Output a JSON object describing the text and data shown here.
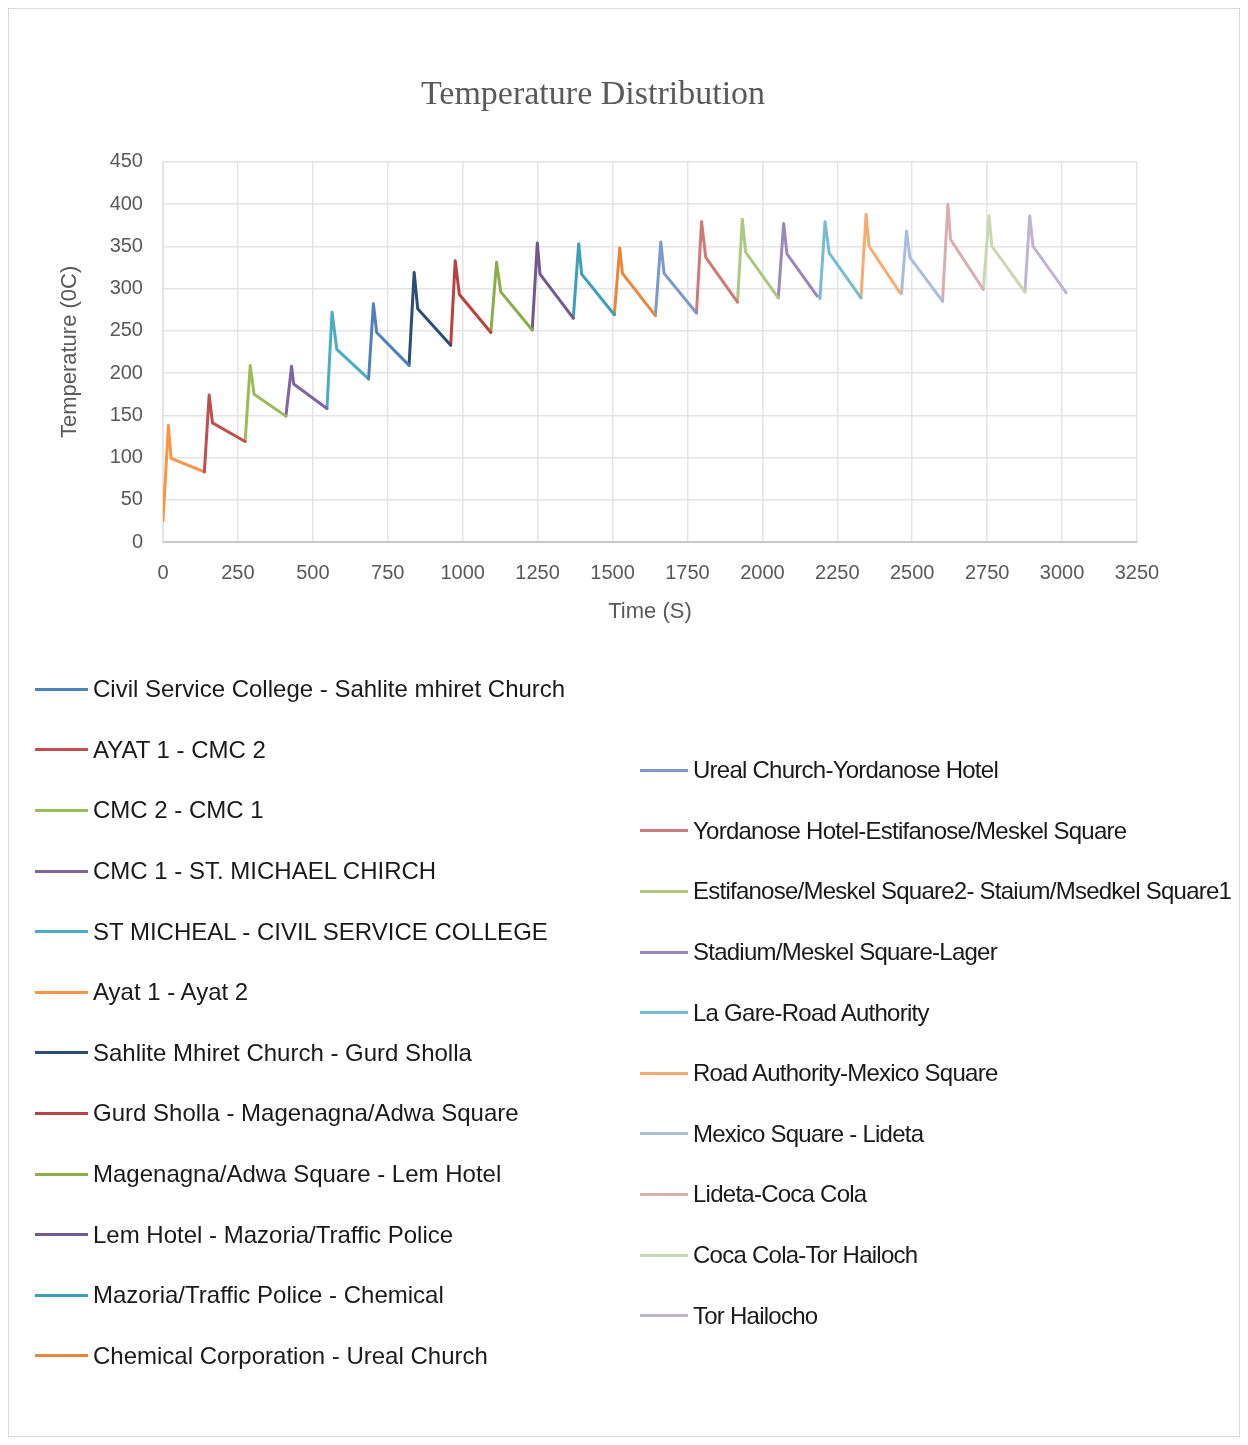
{
  "chart_data": {
    "type": "line",
    "title": "Temperature Distribution",
    "xlabel": "Time (S)",
    "ylabel": "Temperature (0C)",
    "xlim": [
      0,
      3250
    ],
    "xticks": [
      0,
      250,
      500,
      750,
      1000,
      1250,
      1500,
      1750,
      2000,
      2250,
      2500,
      2750,
      3000,
      3250
    ],
    "ylim": [
      0,
      450
    ],
    "yticks": [
      0,
      50,
      100,
      150,
      200,
      250,
      300,
      350,
      400,
      450
    ],
    "grid": true,
    "legend": "bottom",
    "marker": "none",
    "series": [
      {
        "name": "Civil Service College - Sahlite mhiret Church",
        "color": "#4f81bd",
        "x": [
          686,
          702,
          713,
          821
        ],
        "values": [
          193,
          282,
          248,
          209
        ]
      },
      {
        "name": "AYAT 1 - CMC 2",
        "color": "#c0504d",
        "x": [
          138,
          154,
          165,
          274
        ],
        "values": [
          83,
          174,
          141,
          119
        ]
      },
      {
        "name": "CMC 2 - CMC 1",
        "color": "#9bbb59",
        "x": [
          274,
          291,
          304,
          410
        ],
        "values": [
          119,
          209,
          175,
          149
        ]
      },
      {
        "name": "CMC 1 - ST. MICHAEL CHIRCH",
        "color": "#8064a2",
        "x": [
          410,
          429,
          436,
          547
        ],
        "values": [
          149,
          208,
          187,
          158
        ]
      },
      {
        "name": "ST MICHEAL - CIVIL SERVICE COLLEGE",
        "color": "#4bacc6",
        "x": [
          547,
          564,
          580,
          686
        ],
        "values": [
          158,
          272,
          228,
          193
        ]
      },
      {
        "name": "Ayat 1 - Ayat 2",
        "color": "#f79646",
        "x": [
          0,
          18,
          27,
          138
        ],
        "values": [
          25,
          138,
          99,
          83
        ]
      },
      {
        "name": "Sahlite Mhiret Church - Gurd Sholla",
        "color": "#2c4d75",
        "x": [
          821,
          838,
          850,
          960
        ],
        "values": [
          209,
          319,
          276,
          233
        ]
      },
      {
        "name": "Gurd Sholla - Magenagna/Adwa Square",
        "color": "#b84340",
        "x": [
          960,
          975,
          989,
          1094
        ],
        "values": [
          233,
          333,
          293,
          248
        ]
      },
      {
        "name": "Magenagna/Adwa Square - Lem Hotel",
        "color": "#8bad4a",
        "x": [
          1094,
          1113,
          1127,
          1232
        ],
        "values": [
          248,
          331,
          296,
          251
        ]
      },
      {
        "name": "Lem Hotel - Mazoria/Traffic Police",
        "color": "#71588f",
        "x": [
          1232,
          1249,
          1258,
          1369
        ],
        "values": [
          251,
          354,
          317,
          265
        ]
      },
      {
        "name": "Mazoria/Traffic Police - Chemical",
        "color": "#3ca0b8",
        "x": [
          1369,
          1387,
          1397,
          1506
        ],
        "values": [
          265,
          353,
          317,
          269
        ]
      },
      {
        "name": "Chemical Corporation - Ureal Church",
        "color": "#e8873a",
        "x": [
          1506,
          1524,
          1533,
          1643
        ],
        "values": [
          269,
          348,
          318,
          268
        ]
      },
      {
        "name": "Ureal Church-Yordanose Hotel",
        "color": "#7b9acb",
        "x": [
          1643,
          1661,
          1672,
          1780
        ],
        "values": [
          268,
          355,
          318,
          271
        ]
      },
      {
        "name": "Yordanose Hotel-Estifanose/Meskel Square",
        "color": "#cd7b79",
        "x": [
          1780,
          1797,
          1811,
          1917
        ],
        "values": [
          271,
          379,
          337,
          284
        ]
      },
      {
        "name": "Estifanose/Meskel Square2- Staium/Msedkel Square1",
        "color": "#aec884",
        "x": [
          1917,
          1933,
          1944,
          2053
        ],
        "values": [
          284,
          382,
          343,
          289
        ]
      },
      {
        "name": "Stadium/Meskel Square-Lager",
        "color": "#9b87b8",
        "x": [
          2053,
          2071,
          2082,
          2183
        ],
        "values": [
          289,
          377,
          341,
          291
        ]
      },
      {
        "name": "La Gare-Road Authority",
        "color": "#78bcd2",
        "x": [
          2192,
          2209,
          2223,
          2329
        ],
        "values": [
          288,
          379,
          342,
          289
        ]
      },
      {
        "name": "Road Authority-Mexico Square",
        "color": "#f9ab6f",
        "x": [
          2329,
          2346,
          2356,
          2459
        ],
        "values": [
          289,
          388,
          350,
          295
        ]
      },
      {
        "name": "Mexico Square - Lideta",
        "color": "#a9bddc",
        "x": [
          2464,
          2481,
          2492,
          2601
        ],
        "values": [
          294,
          368,
          337,
          285
        ]
      },
      {
        "name": "Lideta-Coca Cola",
        "color": "#d8afae",
        "x": [
          2601,
          2619,
          2628,
          2737
        ],
        "values": [
          285,
          400,
          358,
          299
        ]
      },
      {
        "name": "Coca Cola-Tor Hailoch",
        "color": "#c8d9b2",
        "x": [
          2737,
          2756,
          2766,
          2876
        ],
        "values": [
          299,
          386,
          350,
          296
        ]
      },
      {
        "name": "Tor Hailocho",
        "color": "#bfb5d3",
        "x": [
          2876,
          2892,
          2903,
          3014
        ],
        "values": [
          296,
          386,
          350,
          295
        ]
      }
    ]
  }
}
